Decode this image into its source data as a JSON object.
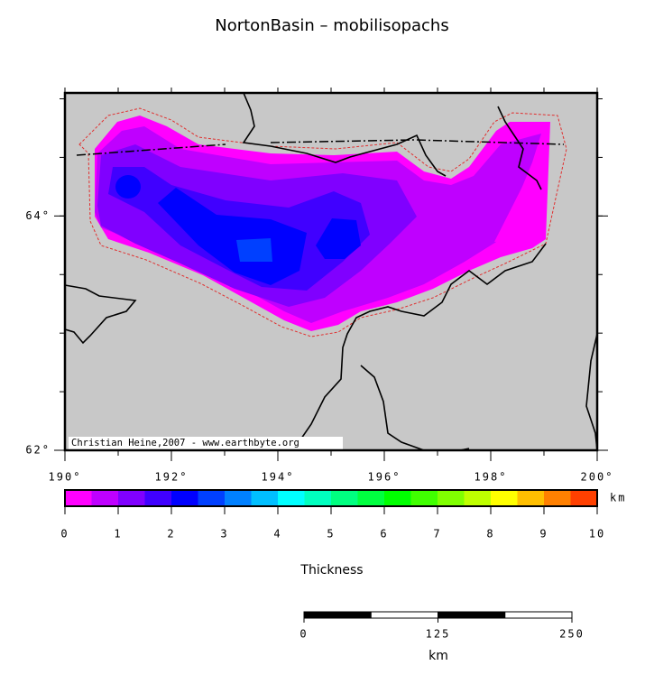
{
  "title": "NortonBasin – mobilisopachs",
  "map": {
    "lonlim": [
      190,
      200
    ],
    "latlim": [
      62,
      65.05
    ],
    "lon_ticks": [
      {
        "value": 190,
        "label": "190°"
      },
      {
        "value": 192,
        "label": "192°"
      },
      {
        "value": 194,
        "label": "194°"
      },
      {
        "value": 196,
        "label": "196°"
      },
      {
        "value": 198,
        "label": "198°"
      },
      {
        "value": 200,
        "label": "200°"
      }
    ],
    "lat_ticks": [
      {
        "value": 62,
        "label": "62°"
      },
      {
        "value": 64,
        "label": "64°"
      }
    ],
    "credit": "Christian Heine,2007 - www.earthbyte.org"
  },
  "colorbar": {
    "ticks": [
      0,
      1,
      2,
      3,
      4,
      5,
      6,
      7,
      8,
      9,
      10
    ],
    "unit": "km",
    "label": "Thickness",
    "colors": [
      "#ff00ff",
      "#bf00ff",
      "#8000ff",
      "#4000ff",
      "#0000ff",
      "#0040ff",
      "#0080ff",
      "#00bfff",
      "#00ffff",
      "#00ffbf",
      "#00ff80",
      "#00ff40",
      "#00ff00",
      "#40ff00",
      "#80ff00",
      "#bfff00",
      "#ffff00",
      "#ffbf00",
      "#ff8000",
      "#ff4000"
    ]
  },
  "scalebar": {
    "ticks": [
      0,
      125,
      250
    ],
    "unit": "km"
  }
}
